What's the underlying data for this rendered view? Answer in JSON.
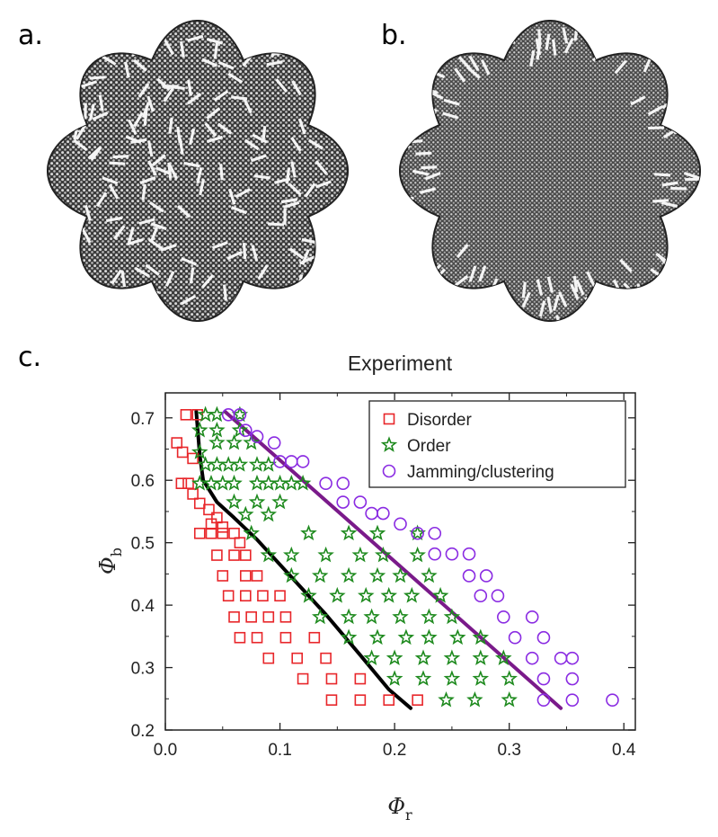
{
  "panels": {
    "a": {
      "label": "a."
    },
    "b": {
      "label": "b."
    },
    "c": {
      "label": "c."
    }
  },
  "chart_data": {
    "type": "scatter",
    "title": "Experiment",
    "xlabel": "Φ",
    "xlabel_sub": "r",
    "ylabel": "Φ",
    "ylabel_sub": "b",
    "xlim": [
      0.0,
      0.41
    ],
    "ylim": [
      0.2,
      0.74
    ],
    "xticks": [
      0.0,
      0.1,
      0.2,
      0.3,
      0.4
    ],
    "xtick_labels": [
      "0.0",
      "0.1",
      "0.2",
      "0.3",
      "0.4"
    ],
    "yticks": [
      0.2,
      0.3,
      0.4,
      0.5,
      0.6,
      0.7
    ],
    "ytick_labels": [
      "0.2",
      "0.3",
      "0.4",
      "0.5",
      "0.6",
      "0.7"
    ],
    "legend_position": "top-right",
    "grid": false,
    "series": [
      {
        "name": "Disorder",
        "marker": "square",
        "color": "#e8262a",
        "points": [
          [
            0.018,
            0.705
          ],
          [
            0.028,
            0.705
          ],
          [
            0.01,
            0.66
          ],
          [
            0.015,
            0.645
          ],
          [
            0.024,
            0.635
          ],
          [
            0.014,
            0.595
          ],
          [
            0.02,
            0.595
          ],
          [
            0.024,
            0.578
          ],
          [
            0.03,
            0.563
          ],
          [
            0.038,
            0.553
          ],
          [
            0.045,
            0.54
          ],
          [
            0.04,
            0.53
          ],
          [
            0.05,
            0.525
          ],
          [
            0.05,
            0.515
          ],
          [
            0.06,
            0.515
          ],
          [
            0.03,
            0.515
          ],
          [
            0.04,
            0.515
          ],
          [
            0.065,
            0.5
          ],
          [
            0.045,
            0.48
          ],
          [
            0.06,
            0.48
          ],
          [
            0.07,
            0.48
          ],
          [
            0.05,
            0.447
          ],
          [
            0.07,
            0.447
          ],
          [
            0.08,
            0.447
          ],
          [
            0.055,
            0.415
          ],
          [
            0.07,
            0.415
          ],
          [
            0.085,
            0.415
          ],
          [
            0.1,
            0.415
          ],
          [
            0.06,
            0.381
          ],
          [
            0.075,
            0.381
          ],
          [
            0.09,
            0.381
          ],
          [
            0.105,
            0.381
          ],
          [
            0.065,
            0.348
          ],
          [
            0.08,
            0.348
          ],
          [
            0.105,
            0.348
          ],
          [
            0.13,
            0.348
          ],
          [
            0.09,
            0.315
          ],
          [
            0.115,
            0.315
          ],
          [
            0.14,
            0.315
          ],
          [
            0.12,
            0.282
          ],
          [
            0.145,
            0.282
          ],
          [
            0.17,
            0.282
          ],
          [
            0.145,
            0.248
          ],
          [
            0.17,
            0.248
          ],
          [
            0.195,
            0.248
          ],
          [
            0.22,
            0.248
          ]
        ]
      },
      {
        "name": "Order",
        "marker": "star",
        "color": "#1e8a1e",
        "points": [
          [
            0.035,
            0.705
          ],
          [
            0.045,
            0.705
          ],
          [
            0.065,
            0.705
          ],
          [
            0.03,
            0.68
          ],
          [
            0.045,
            0.68
          ],
          [
            0.065,
            0.68
          ],
          [
            0.03,
            0.645
          ],
          [
            0.045,
            0.66
          ],
          [
            0.06,
            0.66
          ],
          [
            0.075,
            0.66
          ],
          [
            0.035,
            0.625
          ],
          [
            0.045,
            0.625
          ],
          [
            0.055,
            0.625
          ],
          [
            0.065,
            0.625
          ],
          [
            0.08,
            0.625
          ],
          [
            0.09,
            0.625
          ],
          [
            0.03,
            0.595
          ],
          [
            0.04,
            0.595
          ],
          [
            0.05,
            0.595
          ],
          [
            0.06,
            0.595
          ],
          [
            0.08,
            0.595
          ],
          [
            0.09,
            0.595
          ],
          [
            0.1,
            0.595
          ],
          [
            0.11,
            0.595
          ],
          [
            0.12,
            0.595
          ],
          [
            0.06,
            0.565
          ],
          [
            0.08,
            0.565
          ],
          [
            0.1,
            0.565
          ],
          [
            0.07,
            0.545
          ],
          [
            0.09,
            0.545
          ],
          [
            0.075,
            0.515
          ],
          [
            0.125,
            0.515
          ],
          [
            0.16,
            0.515
          ],
          [
            0.185,
            0.515
          ],
          [
            0.22,
            0.515
          ],
          [
            0.09,
            0.48
          ],
          [
            0.11,
            0.48
          ],
          [
            0.14,
            0.48
          ],
          [
            0.17,
            0.48
          ],
          [
            0.19,
            0.48
          ],
          [
            0.22,
            0.48
          ],
          [
            0.11,
            0.447
          ],
          [
            0.135,
            0.447
          ],
          [
            0.16,
            0.447
          ],
          [
            0.185,
            0.447
          ],
          [
            0.205,
            0.447
          ],
          [
            0.23,
            0.447
          ],
          [
            0.125,
            0.415
          ],
          [
            0.15,
            0.415
          ],
          [
            0.175,
            0.415
          ],
          [
            0.195,
            0.415
          ],
          [
            0.215,
            0.415
          ],
          [
            0.24,
            0.415
          ],
          [
            0.135,
            0.381
          ],
          [
            0.16,
            0.381
          ],
          [
            0.18,
            0.381
          ],
          [
            0.205,
            0.381
          ],
          [
            0.23,
            0.381
          ],
          [
            0.25,
            0.381
          ],
          [
            0.16,
            0.348
          ],
          [
            0.185,
            0.348
          ],
          [
            0.21,
            0.348
          ],
          [
            0.23,
            0.348
          ],
          [
            0.255,
            0.348
          ],
          [
            0.275,
            0.348
          ],
          [
            0.18,
            0.315
          ],
          [
            0.2,
            0.315
          ],
          [
            0.225,
            0.315
          ],
          [
            0.25,
            0.315
          ],
          [
            0.275,
            0.315
          ],
          [
            0.295,
            0.315
          ],
          [
            0.2,
            0.282
          ],
          [
            0.225,
            0.282
          ],
          [
            0.25,
            0.282
          ],
          [
            0.275,
            0.282
          ],
          [
            0.3,
            0.282
          ],
          [
            0.245,
            0.248
          ],
          [
            0.27,
            0.248
          ],
          [
            0.3,
            0.248
          ]
        ]
      },
      {
        "name": "Jamming/clustering",
        "marker": "circle",
        "color": "#8a2be2",
        "points": [
          [
            0.055,
            0.705
          ],
          [
            0.065,
            0.705
          ],
          [
            0.07,
            0.68
          ],
          [
            0.08,
            0.67
          ],
          [
            0.095,
            0.66
          ],
          [
            0.1,
            0.63
          ],
          [
            0.11,
            0.63
          ],
          [
            0.12,
            0.63
          ],
          [
            0.14,
            0.595
          ],
          [
            0.155,
            0.595
          ],
          [
            0.155,
            0.565
          ],
          [
            0.17,
            0.565
          ],
          [
            0.18,
            0.547
          ],
          [
            0.19,
            0.547
          ],
          [
            0.205,
            0.53
          ],
          [
            0.22,
            0.515
          ],
          [
            0.235,
            0.515
          ],
          [
            0.235,
            0.482
          ],
          [
            0.25,
            0.482
          ],
          [
            0.265,
            0.482
          ],
          [
            0.265,
            0.447
          ],
          [
            0.28,
            0.447
          ],
          [
            0.275,
            0.415
          ],
          [
            0.29,
            0.415
          ],
          [
            0.295,
            0.381
          ],
          [
            0.32,
            0.381
          ],
          [
            0.305,
            0.348
          ],
          [
            0.33,
            0.348
          ],
          [
            0.32,
            0.315
          ],
          [
            0.345,
            0.315
          ],
          [
            0.355,
            0.315
          ],
          [
            0.33,
            0.282
          ],
          [
            0.355,
            0.282
          ],
          [
            0.33,
            0.248
          ],
          [
            0.355,
            0.248
          ],
          [
            0.39,
            0.248
          ]
        ]
      }
    ],
    "boundary_lines": [
      {
        "color": "#000000",
        "points": [
          [
            0.027,
            0.71
          ],
          [
            0.03,
            0.64
          ],
          [
            0.033,
            0.6
          ],
          [
            0.045,
            0.565
          ],
          [
            0.06,
            0.54
          ],
          [
            0.08,
            0.505
          ],
          [
            0.11,
            0.445
          ],
          [
            0.14,
            0.385
          ],
          [
            0.17,
            0.32
          ],
          [
            0.195,
            0.265
          ],
          [
            0.214,
            0.235
          ]
        ]
      },
      {
        "color": "#7a1a8a",
        "points": [
          [
            0.052,
            0.71
          ],
          [
            0.345,
            0.235
          ]
        ]
      }
    ]
  }
}
